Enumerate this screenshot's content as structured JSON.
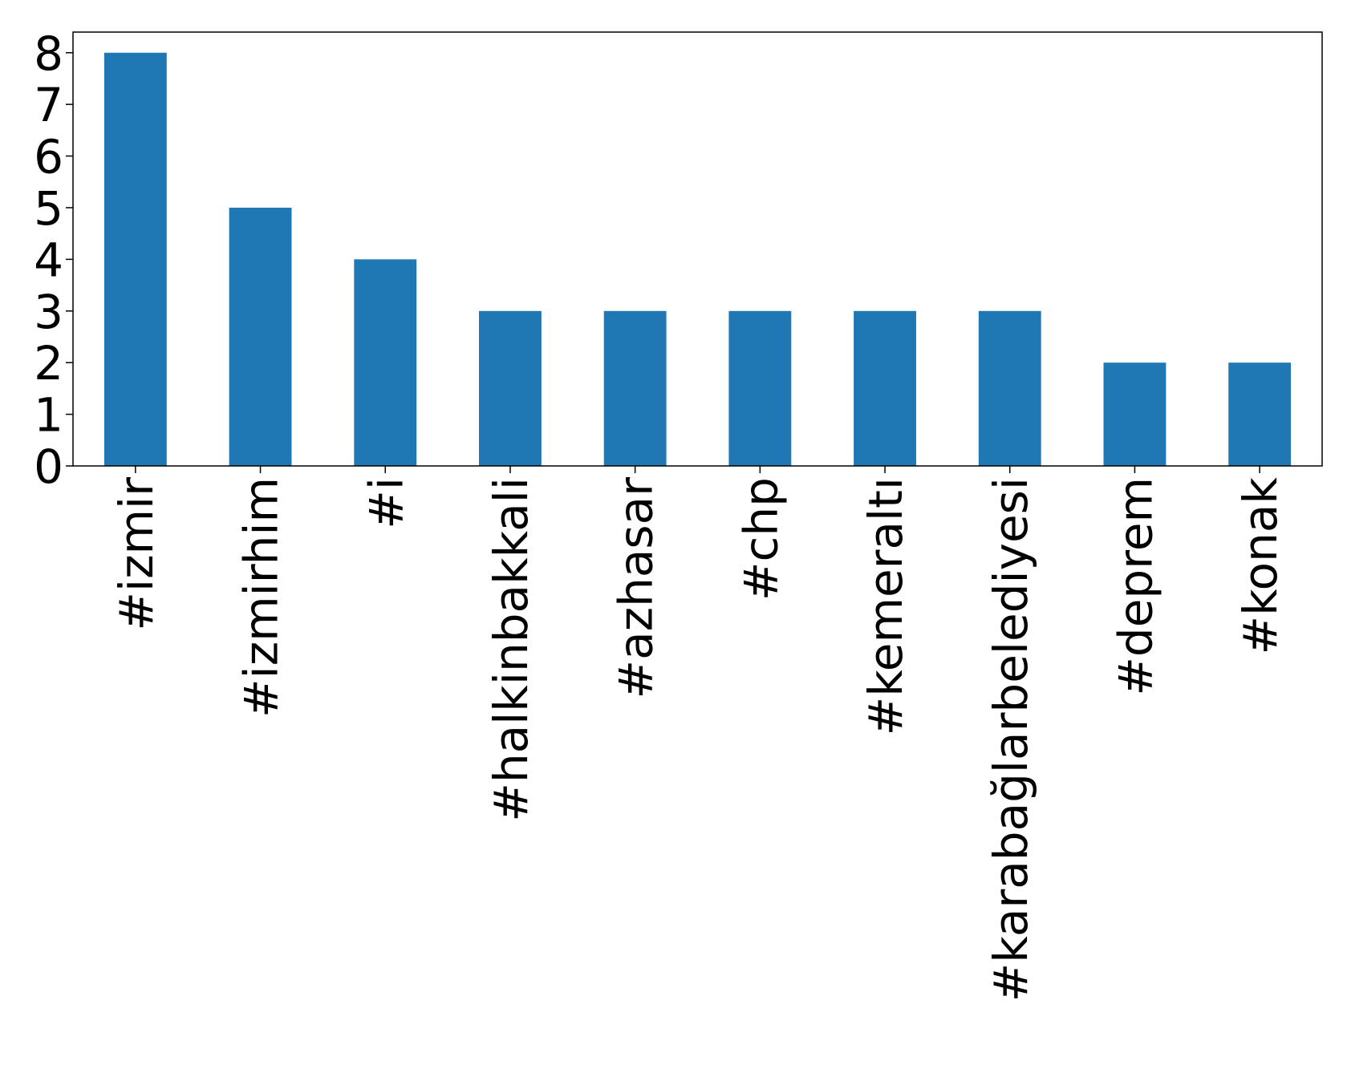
{
  "chart_data": {
    "type": "bar",
    "categories": [
      "#izmir",
      "#izmirhim",
      "#i",
      "#halkinbakkali",
      "#azhasar",
      "#chp",
      "#kemeraltı",
      "#karabağlarbelediyesi",
      "#deprem",
      "#konak"
    ],
    "values": [
      8,
      5,
      4,
      3,
      3,
      3,
      3,
      3,
      2,
      2
    ],
    "color": "#1f77b4",
    "ylim": [
      0,
      8.4
    ],
    "yticks": [
      0,
      1,
      2,
      3,
      4,
      5,
      6,
      7,
      8
    ],
    "grid": false
  }
}
